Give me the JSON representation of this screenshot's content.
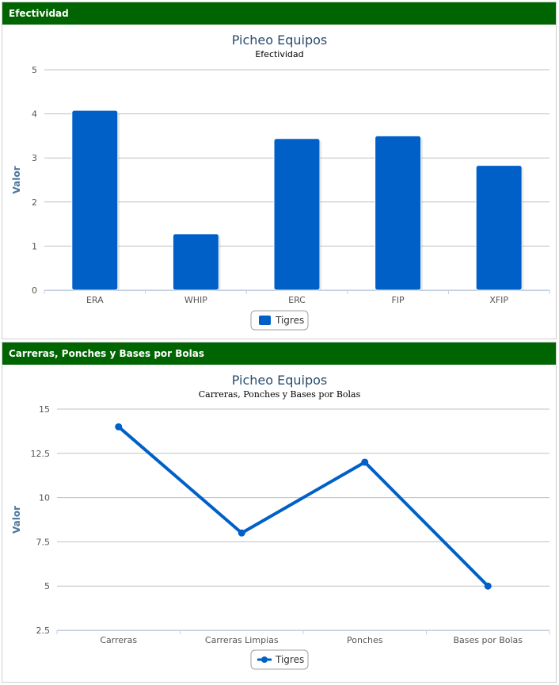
{
  "panels": [
    {
      "header": "Efectividad",
      "chart_data": {
        "type": "bar",
        "title": "Picheo Equipos",
        "subtitle": "Efectividad",
        "ylabel": "Valor",
        "categories": [
          "ERA",
          "WHIP",
          "ERC",
          "FIP",
          "XFIP"
        ],
        "ylim": [
          0,
          5
        ],
        "yticks": [
          "0",
          "1",
          "2",
          "3",
          "4",
          "5"
        ],
        "series": [
          {
            "name": "Tigres",
            "values": [
              4.08,
              1.28,
              3.44,
              3.5,
              2.83
            ]
          }
        ],
        "color": "#0060c8",
        "grid": true,
        "legend_position": "bottom-center"
      }
    },
    {
      "header": "Carreras, Ponches y Bases por Bolas",
      "chart_data": {
        "type": "line",
        "title": "Picheo Equipos",
        "subtitle": "Carreras, Ponches y Bases por Bolas",
        "ylabel": "Valor",
        "categories": [
          "Carreras",
          "Carreras Limpias",
          "Ponches",
          "Bases por Bolas"
        ],
        "ylim": [
          2.5,
          15
        ],
        "yticks": [
          "2.5",
          "5",
          "7.5",
          "10",
          "12.5",
          "15"
        ],
        "series": [
          {
            "name": "Tigres",
            "values": [
              14,
              8,
              12,
              5
            ]
          }
        ],
        "color": "#0060c8",
        "grid": true,
        "legend_position": "bottom-center"
      }
    }
  ]
}
